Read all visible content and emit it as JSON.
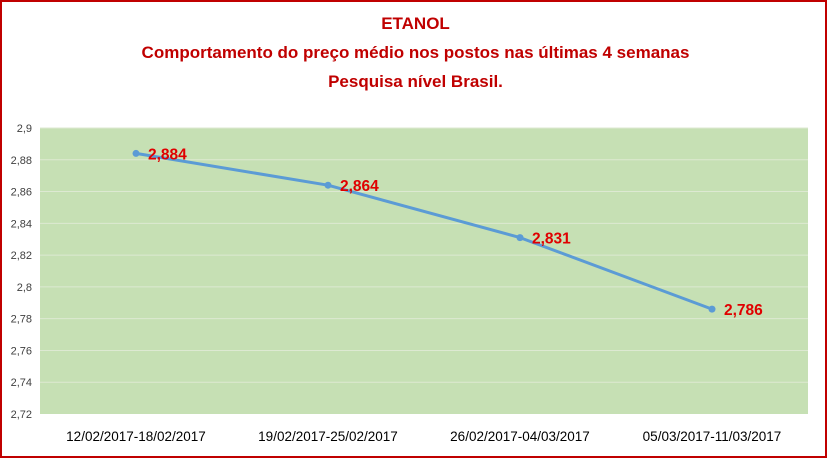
{
  "chart_data": {
    "type": "line",
    "title_lines": [
      "ETANOL",
      "Comportamento do preço médio nos postos nas últimas 4 semanas",
      "Pesquisa nível Brasil."
    ],
    "categories": [
      "12/02/2017-18/02/2017",
      "19/02/2017-25/02/2017",
      "26/02/2017-04/03/2017",
      "05/03/2017-11/03/2017"
    ],
    "series": [
      {
        "values": [
          2.884,
          2.864,
          2.831,
          2.786
        ],
        "data_labels": [
          "2,884",
          "2,864",
          "2,831",
          "2,786"
        ]
      }
    ],
    "y_ticks": [
      "2,72",
      "2,74",
      "2,76",
      "2,78",
      "2,8",
      "2,82",
      "2,84",
      "2,86",
      "2,88",
      "2,9"
    ],
    "ylim": [
      2.72,
      2.9
    ],
    "grid": true,
    "legend": "none",
    "colors": {
      "plot_background": "#c6e0b4",
      "line": "#5b9bd5",
      "title": "#c00000",
      "data_label": "#e00000",
      "frame": "#c00000",
      "gridline": "#dde9d2"
    }
  }
}
